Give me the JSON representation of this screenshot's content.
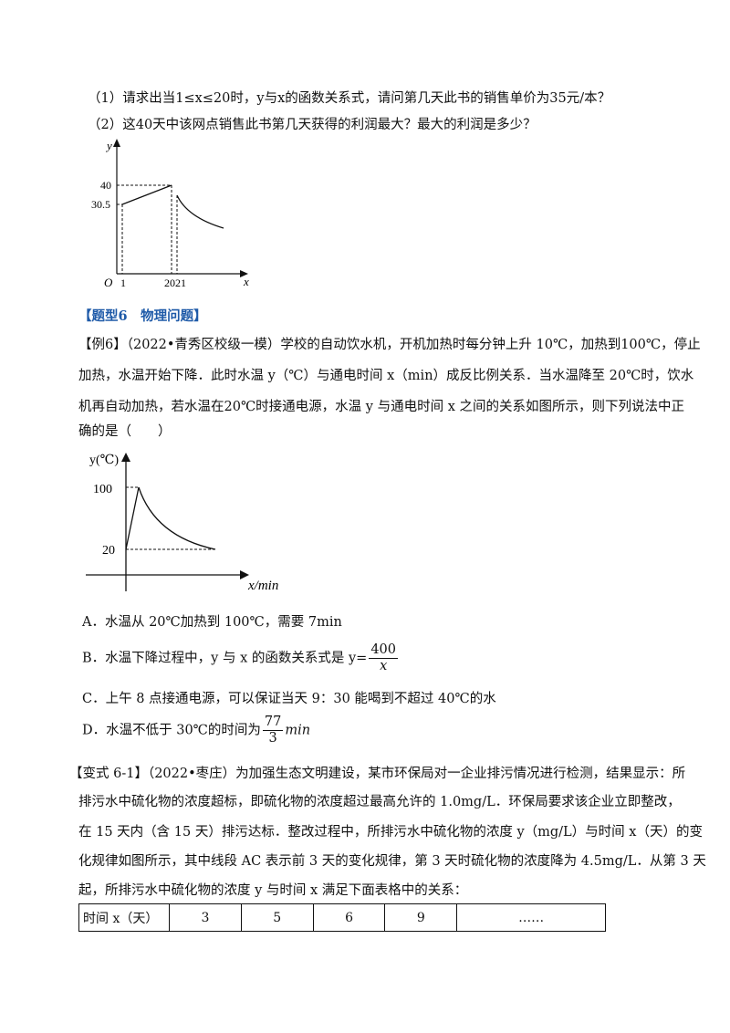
{
  "q1": "（1）请求出当1≤x≤20时，y与x的函数关系式，请问第几天此书的销售单价为35元/本？",
  "q2": "（2）这40天中该网点销售此书第几天获得的利润最大？最大的利润是多少？",
  "graph1": {
    "y_axis": "y",
    "x_axis": "x",
    "origin": "O",
    "y_ticks": [
      "40",
      "30.5"
    ],
    "x_ticks": [
      "1",
      "2021"
    ]
  },
  "heading": "【题型6　物理问题】",
  "example": {
    "lines": [
      "【例6】（2022•青秀区校级一模）学校的自动饮水机，开机加热时每分钟上升 10℃，加热到100℃，停止",
      "加热，水温开始下降．此时水温 y（℃）与通电时间 x（min）成反比例关系．当水温降至 20℃时，饮水",
      "机再自动加热，若水温在20℃时接通电源，水温 y 与通电时间 x 之间的关系如图所示，则下列说法中正",
      "确的是（　　）"
    ]
  },
  "graph2": {
    "y_axis": "y(℃)",
    "x_axis": "x/min",
    "y_ticks": [
      "100",
      "20"
    ]
  },
  "options": {
    "A": "A．水温从 20℃加热到 100℃，需要 7min",
    "B_text": "B．水温下降过程中，y 与 x 的函数关系式是 y=",
    "B_num": "400",
    "B_den": "x",
    "C": "C．上午 8 点接通电源，可以保证当天 9：30 能喝到不超过 40℃的水",
    "D_text": "D．水温不低于 30℃的时间为",
    "D_num": "77",
    "D_den": "3",
    "D_unit": "min"
  },
  "variant": {
    "lines": [
      "【变式 6-1】（2022•枣庄）为加强生态文明建设，某市环保局对一企业排污情况进行检测，结果显示：所",
      "排污水中硫化物的浓度超标，即硫化物的浓度超过最高允许的 1.0mg/L．环保局要求该企业立即整改，",
      "在 15 天内（含 15 天）排污达标．整改过程中，所排污水中硫化物的浓度 y（mg/L）与时间 x（天）的变",
      "化规律如图所示，其中线段 AC 表示前 3 天的变化规律，第 3 天时硫化物的浓度降为 4.5mg/L．从第 3 天",
      "起，所排污水中硫化物的浓度 y 与时间 x 满足下面表格中的关系："
    ]
  },
  "table": {
    "header": "时间 x（天）",
    "cells": [
      "3",
      "5",
      "6",
      "9",
      "……"
    ]
  }
}
